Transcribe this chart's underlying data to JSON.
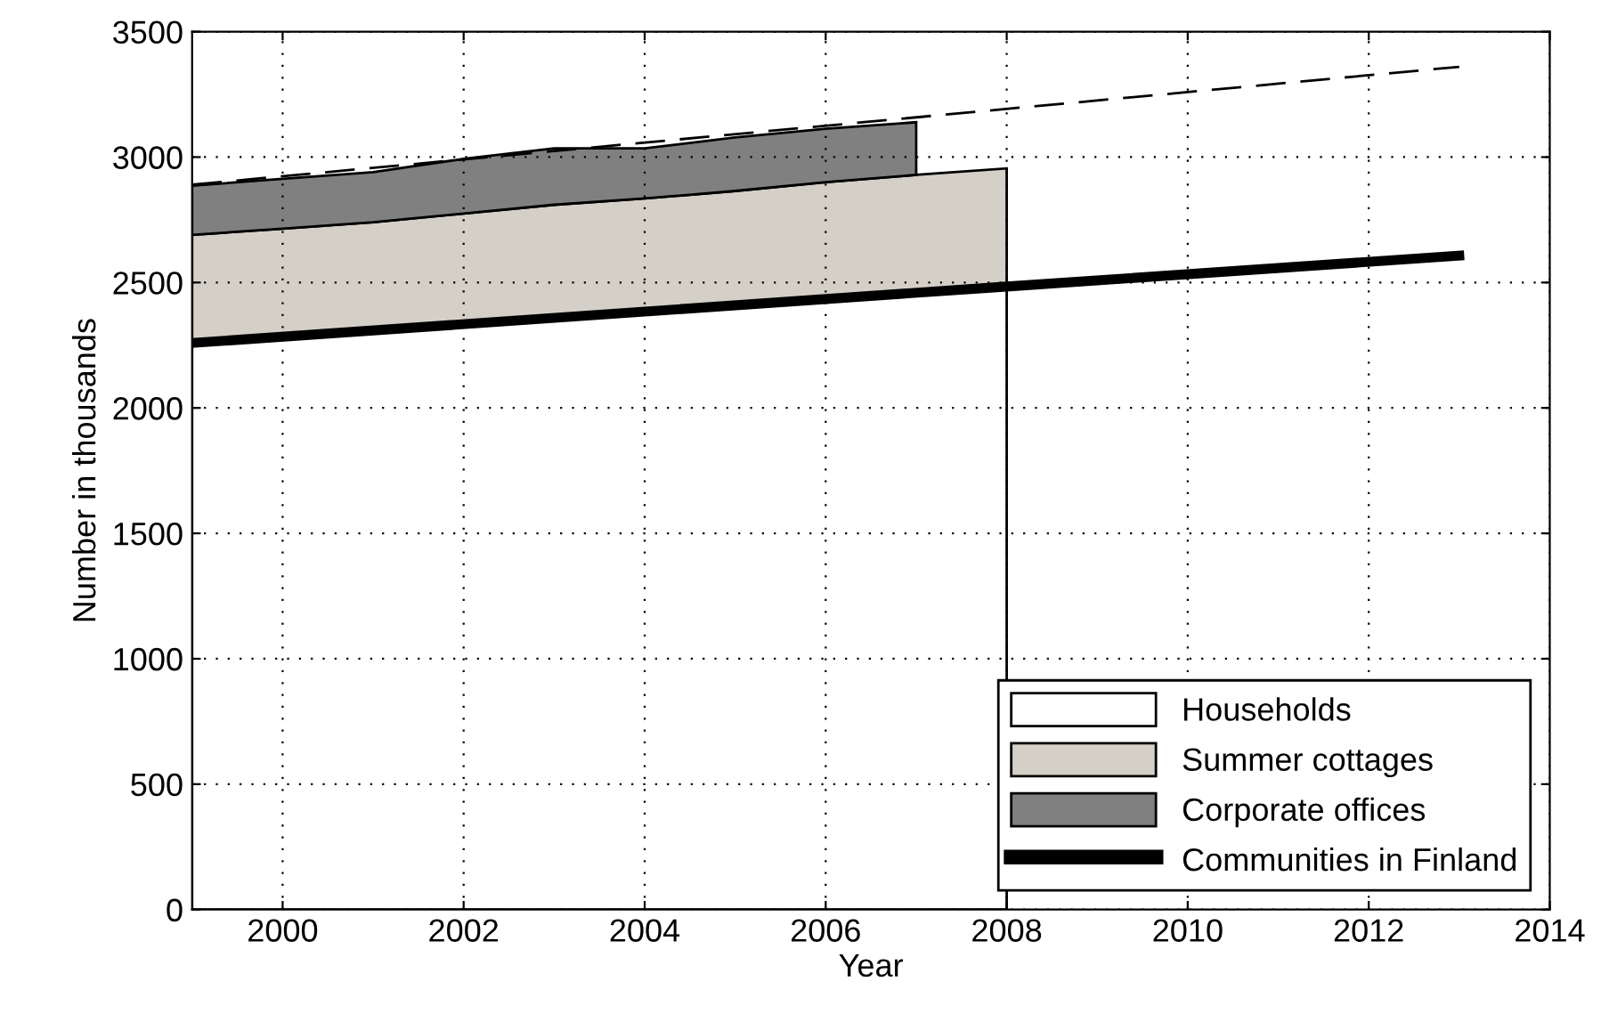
{
  "chart_data": {
    "type": "area",
    "stacked": true,
    "xlabel": "Year",
    "ylabel": "Number in thousands",
    "xlim": [
      1999,
      2014
    ],
    "xticks": [
      2000,
      2002,
      2004,
      2006,
      2008,
      2010,
      2012,
      2014
    ],
    "ylim": [
      0,
      3500
    ],
    "yticks": [
      0,
      500,
      1000,
      1500,
      2000,
      2500,
      3000,
      3500
    ],
    "grid": true,
    "legend": "bottom right",
    "series": [
      {
        "name": "Households",
        "color": "#ffffff",
        "x": [
          1999,
          2000,
          2001,
          2002,
          2003,
          2004,
          2005,
          2006,
          2007,
          2008
        ],
        "values": [
          2259,
          2284,
          2309,
          2334,
          2359,
          2384,
          2409,
          2434,
          2459,
          2484
        ]
      },
      {
        "name": "Summer cottages",
        "color": "#d4d0c8",
        "x": [
          1999,
          2000,
          2001,
          2002,
          2003,
          2004,
          2005,
          2006,
          2007,
          2008
        ],
        "values": [
          431,
          431,
          431,
          441,
          451,
          451,
          456,
          466,
          470,
          471
        ]
      },
      {
        "name": "Corporate offices",
        "color": "#808080",
        "x": [
          1999,
          2000,
          2001,
          2002,
          2003,
          2004,
          2005,
          2006,
          2007
        ],
        "values": [
          196,
          198,
          200,
          218,
          225,
          200,
          213,
          213,
          210
        ]
      },
      {
        "name": "Communities in Finland",
        "type": "line",
        "color": "#000000",
        "x": [
          1999,
          2008,
          2013
        ],
        "values": [
          2259,
          2484,
          2607
        ]
      },
      {
        "type": "line",
        "color": "#000000",
        "line_style": "dashed",
        "x": [
          1999,
          2013
        ],
        "values": [
          2890,
          3360
        ]
      }
    ]
  }
}
